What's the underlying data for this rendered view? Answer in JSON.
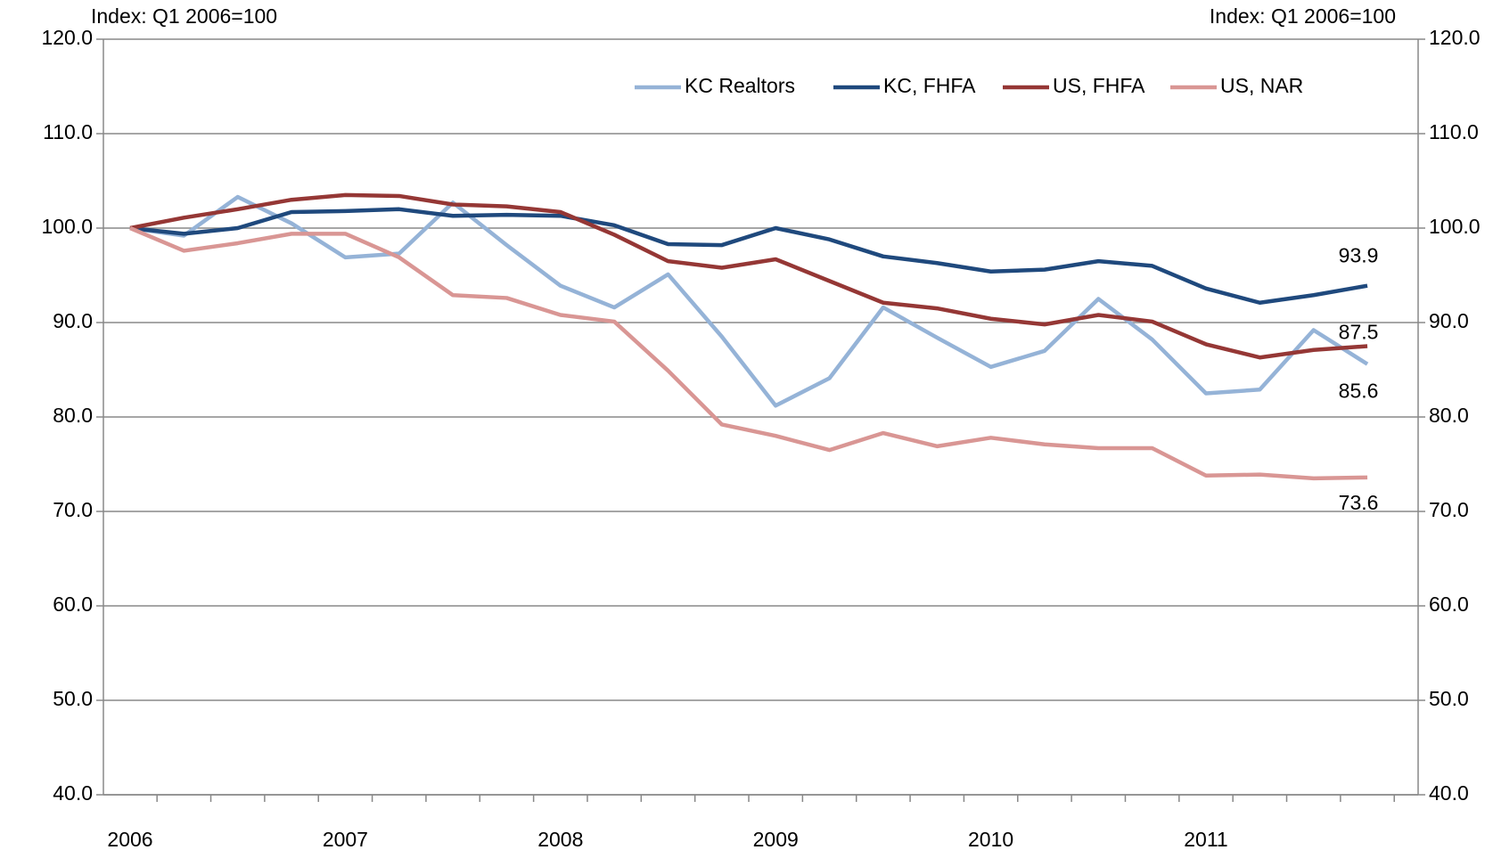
{
  "chart_data": {
    "type": "line",
    "ylabel": "Index: Q1 2006=100",
    "y2label": "Index: Q1 2006=100",
    "categories": [
      "2006",
      null,
      null,
      null,
      "2007",
      null,
      null,
      null,
      "2008",
      null,
      null,
      null,
      "2009",
      null,
      null,
      null,
      "2010",
      null,
      null,
      null,
      "2011",
      null,
      null,
      null
    ],
    "series": [
      {
        "name": "KC Realtors",
        "color": "#95b3d7",
        "values": [
          100,
          99.2,
          103.3,
          100.5,
          96.9,
          97.3,
          102.7,
          98.2,
          93.9,
          91.6,
          95.1,
          88.5,
          81.2,
          84.1,
          91.6,
          88.4,
          85.3,
          87,
          92.5,
          88.2,
          82.5,
          82.9,
          89.2,
          85.6
        ]
      },
      {
        "name": "KC, FHFA",
        "color": "#1f497d",
        "values": [
          100,
          99.4,
          100,
          101.7,
          101.8,
          102,
          101.3,
          101.4,
          101.3,
          100.3,
          98.3,
          98.2,
          100,
          98.8,
          97,
          96.3,
          95.4,
          95.6,
          96.5,
          96,
          93.6,
          92.1,
          92.9,
          93.9
        ]
      },
      {
        "name": "US, FHFA",
        "color": "#953735",
        "values": [
          100,
          101.1,
          102,
          103,
          103.5,
          103.4,
          102.5,
          102.3,
          101.7,
          99.3,
          96.5,
          95.8,
          96.7,
          94.4,
          92.1,
          91.5,
          90.4,
          89.8,
          90.8,
          90.1,
          87.7,
          86.3,
          87.1,
          87.5
        ]
      },
      {
        "name": "US, NAR",
        "color": "#d99694",
        "values": [
          100,
          97.6,
          98.4,
          99.4,
          99.4,
          96.9,
          92.9,
          92.6,
          90.8,
          90.1,
          84.9,
          79.2,
          78,
          76.5,
          78.3,
          76.9,
          77.8,
          77.1,
          76.7,
          76.7,
          73.8,
          73.9,
          73.5,
          73.6
        ]
      }
    ],
    "ylim": [
      40,
      120
    ],
    "yticks": [
      {
        "value": 40,
        "label": "40.0"
      },
      {
        "value": 50,
        "label": "50.0"
      },
      {
        "value": 60,
        "label": "60.0"
      },
      {
        "value": 70,
        "label": "70.0"
      },
      {
        "value": 80,
        "label": "80.0"
      },
      {
        "value": 90,
        "label": "90.0"
      },
      {
        "value": 100,
        "label": "100.0"
      },
      {
        "value": 110,
        "label": "110.0"
      },
      {
        "value": 120,
        "label": "120.0"
      }
    ],
    "y2lim": [
      40,
      120
    ],
    "y2ticks": [
      {
        "value": 40,
        "label": "40.0"
      },
      {
        "value": 50,
        "label": "50.0"
      },
      {
        "value": 60,
        "label": "60.0"
      },
      {
        "value": 70,
        "label": "70.0"
      },
      {
        "value": 80,
        "label": "80.0"
      },
      {
        "value": 90,
        "label": "90.0"
      },
      {
        "value": 100,
        "label": "100.0"
      },
      {
        "value": 110,
        "label": "110.0"
      },
      {
        "value": 120,
        "label": "120.0"
      }
    ],
    "grid": true,
    "legend": "top"
  }
}
